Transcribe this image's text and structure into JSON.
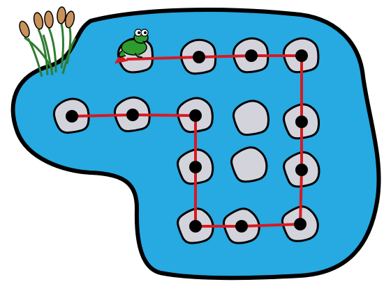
{
  "scene": {
    "pond_color": "#27a9e1",
    "outline_color": "#000000",
    "stone_color": "#d3d3dc",
    "path_color": "#d71921",
    "frog_color": "#2e9b2e",
    "cattail_stem_color": "#2f7d32",
    "cattail_head_color": "#c9925a"
  },
  "diagram": {
    "start_stone": "stone-2-1",
    "end_stone": "stone-1-2",
    "path": [
      "stone-2-1",
      "stone-2-2",
      "stone-2-3",
      "stone-3-3",
      "stone-4-3",
      "stone-4-4",
      "stone-4-5",
      "stone-3-5",
      "stone-2-5",
      "stone-1-5",
      "stone-1-4",
      "stone-1-3",
      "stone-1-2"
    ],
    "stones": [
      {
        "id": "stone-1-2",
        "has_frog": true
      },
      {
        "id": "stone-1-3",
        "has_dot": true
      },
      {
        "id": "stone-1-4",
        "has_dot": true
      },
      {
        "id": "stone-1-5",
        "has_dot": true
      },
      {
        "id": "stone-2-1",
        "has_dot": true
      },
      {
        "id": "stone-2-2",
        "has_dot": true
      },
      {
        "id": "stone-2-3",
        "has_dot": true
      },
      {
        "id": "stone-2-4",
        "has_dot": false
      },
      {
        "id": "stone-2-5",
        "has_dot": true
      },
      {
        "id": "stone-3-3",
        "has_dot": true
      },
      {
        "id": "stone-3-4",
        "has_dot": false
      },
      {
        "id": "stone-3-5",
        "has_dot": true
      },
      {
        "id": "stone-4-3",
        "has_dot": true
      },
      {
        "id": "stone-4-4",
        "has_dot": true
      },
      {
        "id": "stone-4-5",
        "has_dot": true
      }
    ]
  }
}
